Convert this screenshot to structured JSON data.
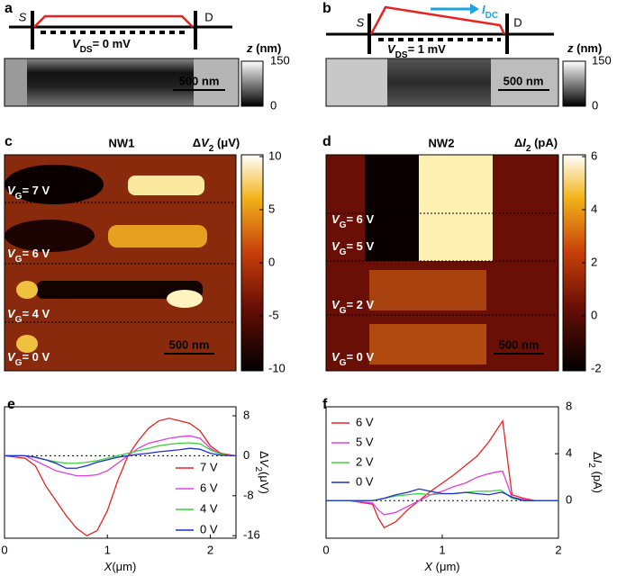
{
  "panels": {
    "a": {
      "letter": "a",
      "source": "S",
      "drain": "D",
      "bias": [
        {
          "text": "V",
          "italic": true
        },
        {
          "text": "DS",
          "sub": true
        },
        {
          "text": "= 0 mV"
        }
      ],
      "z_label": [
        {
          "text": "z",
          "italic": true
        },
        {
          "text": " (nm)"
        }
      ],
      "z_lim": [
        0,
        150
      ],
      "z_ticks": [
        150,
        0
      ],
      "scale_bar": "500 nm"
    },
    "b": {
      "letter": "b",
      "source": "S",
      "drain": "D",
      "bias": [
        {
          "text": "V",
          "italic": true
        },
        {
          "text": "DS",
          "sub": true
        },
        {
          "text": "= 1 mV"
        }
      ],
      "current": [
        {
          "text": "I",
          "italic": true
        },
        {
          "text": "DC",
          "sub": true
        }
      ],
      "z_label": [
        {
          "text": "z",
          "italic": true
        },
        {
          "text": " (nm)"
        }
      ],
      "z_lim": [
        0,
        150
      ],
      "z_ticks": [
        150,
        0
      ],
      "scale_bar": "500 nm"
    },
    "c": {
      "letter": "c",
      "title": "NW1",
      "cbar_label": [
        {
          "text": "Δ"
        },
        {
          "text": "V",
          "italic": true
        },
        {
          "text": "2",
          "sub": true
        },
        {
          "text": " (μV)"
        }
      ],
      "cbar_lim": [
        -10,
        10
      ],
      "cbar_ticks": [
        10,
        5,
        0,
        -5,
        -10
      ],
      "gate_labels": [
        [
          {
            "text": "V",
            "italic": true
          },
          {
            "text": "G",
            "sub": true
          },
          {
            "text": "= 7 V"
          }
        ],
        [
          {
            "text": "V",
            "italic": true
          },
          {
            "text": "G",
            "sub": true
          },
          {
            "text": "= 6 V"
          }
        ],
        [
          {
            "text": "V",
            "italic": true
          },
          {
            "text": "G",
            "sub": true
          },
          {
            "text": "= 4 V"
          }
        ],
        [
          {
            "text": "V",
            "italic": true
          },
          {
            "text": "G",
            "sub": true
          },
          {
            "text": "= 0 V"
          }
        ]
      ],
      "scale_bar": "500 nm"
    },
    "d": {
      "letter": "d",
      "title": "NW2",
      "cbar_label": [
        {
          "text": "Δ"
        },
        {
          "text": "I",
          "italic": true
        },
        {
          "text": "2",
          "sub": true
        },
        {
          "text": " (pA)"
        }
      ],
      "cbar_lim": [
        -2,
        6
      ],
      "cbar_ticks": [
        6,
        4,
        2,
        0,
        -2
      ],
      "gate_labels": [
        [
          {
            "text": "V",
            "italic": true
          },
          {
            "text": "G",
            "sub": true
          },
          {
            "text": "= 6 V"
          }
        ],
        [
          {
            "text": "V",
            "italic": true
          },
          {
            "text": "G",
            "sub": true
          },
          {
            "text": "= 5 V"
          }
        ],
        [
          {
            "text": "V",
            "italic": true
          },
          {
            "text": "G",
            "sub": true
          },
          {
            "text": "= 2 V"
          }
        ],
        [
          {
            "text": "V",
            "italic": true
          },
          {
            "text": "G",
            "sub": true
          },
          {
            "text": "= 0 V"
          }
        ]
      ],
      "scale_bar": "500 nm"
    }
  },
  "chart_data": [
    {
      "type": "line",
      "letter": "e",
      "xlabel": [
        {
          "text": "X",
          "italic": true
        },
        {
          "text": "(μm)"
        }
      ],
      "ylabel": [
        {
          "text": "Δ"
        },
        {
          "text": "V",
          "italic": true
        },
        {
          "text": "2",
          "sub": true
        },
        {
          "text": "(μV)"
        }
      ],
      "xlim": [
        0,
        2.25
      ],
      "xticks": [
        0,
        1,
        2
      ],
      "ylim": [
        -16.5,
        9.8
      ],
      "yticks": [
        8,
        0,
        -8,
        -16
      ],
      "x": [
        0,
        0.2,
        0.3,
        0.4,
        0.5,
        0.6,
        0.7,
        0.8,
        0.9,
        1.0,
        1.1,
        1.2,
        1.3,
        1.4,
        1.5,
        1.6,
        1.7,
        1.8,
        1.9,
        2.0,
        2.1,
        2.25
      ],
      "series": [
        {
          "name": "7 V",
          "color": "#e8231f",
          "values": [
            0,
            -0.5,
            -2,
            -6,
            -9,
            -12,
            -14.5,
            -16,
            -15,
            -11,
            -5,
            0,
            3,
            5.5,
            7,
            7.5,
            7,
            6.5,
            5,
            2,
            0.5,
            0
          ]
        },
        {
          "name": "6 V",
          "color": "#e040e0",
          "values": [
            0,
            0,
            -1,
            -2,
            -3,
            -3.5,
            -4,
            -4,
            -3.8,
            -3,
            -1.5,
            0,
            1.5,
            2.5,
            3,
            3.5,
            3.8,
            4,
            3.5,
            1.5,
            0.3,
            0
          ]
        },
        {
          "name": "4 V",
          "color": "#3ccf3c",
          "values": [
            0,
            0,
            -0.3,
            -0.8,
            -1.2,
            -1.5,
            -1.5,
            -1.3,
            -1,
            -0.5,
            0,
            0.5,
            1,
            1.5,
            2,
            2.3,
            2.5,
            2.6,
            2.4,
            1.2,
            0.3,
            0
          ]
        },
        {
          "name": "0 V",
          "color": "#1c2fd0",
          "values": [
            0,
            0,
            -0.3,
            -0.8,
            -1.5,
            -2.5,
            -2.5,
            -2,
            -1.3,
            -0.8,
            -0.3,
            0,
            0.3,
            0.5,
            0.8,
            1,
            1.2,
            1.5,
            1.3,
            0.5,
            0.1,
            0
          ]
        }
      ]
    },
    {
      "type": "line",
      "letter": "f",
      "xlabel": [
        {
          "text": "X",
          "italic": true
        },
        {
          "text": " (μm)"
        }
      ],
      "ylabel": [
        {
          "text": "Δ"
        },
        {
          "text": "I",
          "italic": true
        },
        {
          "text": "2",
          "sub": true
        },
        {
          "text": " (pA)"
        }
      ],
      "xlim": [
        0,
        2
      ],
      "xticks": [
        0,
        1,
        2
      ],
      "ylim": [
        -3.2,
        8
      ],
      "yticks": [
        8,
        4,
        0
      ],
      "x": [
        0,
        0.2,
        0.4,
        0.45,
        0.5,
        0.6,
        0.7,
        0.8,
        0.9,
        1.0,
        1.1,
        1.2,
        1.3,
        1.4,
        1.5,
        1.52,
        1.6,
        1.7,
        1.8,
        2.0
      ],
      "series": [
        {
          "name": "6 V",
          "color": "#e8231f",
          "values": [
            0,
            0,
            -0.3,
            -1.5,
            -2.3,
            -1.8,
            -0.8,
            0,
            0.8,
            1.5,
            2.2,
            3,
            3.8,
            5,
            6.5,
            6.8,
            0.5,
            0.2,
            0,
            0
          ]
        },
        {
          "name": "5 V",
          "color": "#e040e0",
          "values": [
            0,
            0,
            -0.2,
            -0.8,
            -1.2,
            -1,
            -0.5,
            0,
            0.5,
            0.8,
            1.2,
            1.5,
            2,
            2.3,
            2.5,
            2.5,
            0.3,
            0.1,
            0,
            0
          ]
        },
        {
          "name": "2 V",
          "color": "#3ccf3c",
          "values": [
            0,
            0,
            0,
            0.1,
            0.2,
            0.4,
            0.5,
            0.6,
            0.5,
            0.6,
            0.6,
            0.7,
            0.8,
            0.8,
            0.9,
            0.8,
            0.2,
            0,
            0,
            0
          ]
        },
        {
          "name": "0 V",
          "color": "#1c2fd0",
          "values": [
            0,
            0,
            0,
            0.1,
            0.2,
            0.5,
            0.7,
            1,
            0.8,
            0.6,
            0.6,
            0.7,
            0.6,
            0.5,
            0.7,
            0.7,
            0.3,
            0,
            0,
            0
          ]
        }
      ]
    }
  ]
}
